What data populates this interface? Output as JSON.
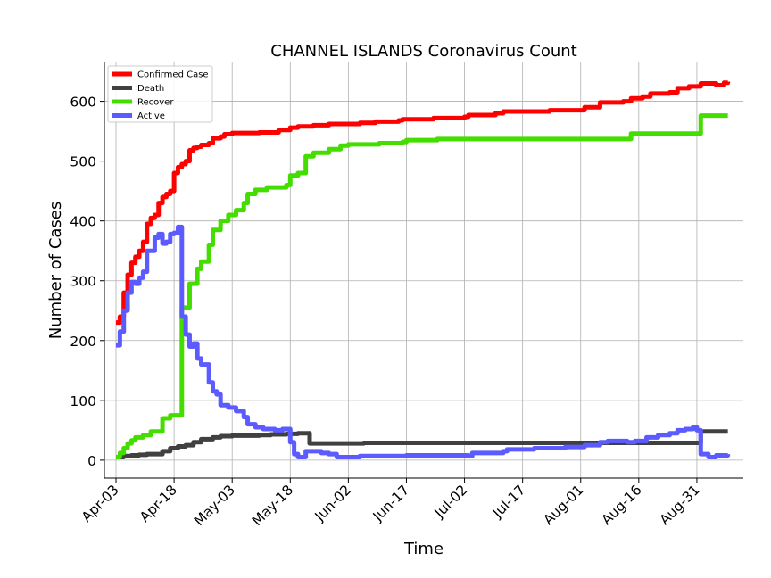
{
  "chart_data": {
    "type": "line",
    "title": "CHANNEL ISLANDS Coronavirus Count",
    "xlabel": "Time",
    "ylabel": "Number of Cases",
    "x_tick_labels": [
      "Apr-03",
      "Apr-18",
      "May-03",
      "May-18",
      "Jun-02",
      "Jun-17",
      "Jul-02",
      "Jul-17",
      "Aug-01",
      "Aug-16",
      "Aug-31"
    ],
    "y_ticks": [
      0,
      100,
      200,
      300,
      400,
      500,
      600
    ],
    "xlim": [
      "2020-03-31",
      "2020-09-12"
    ],
    "ylim": [
      -30,
      665
    ],
    "grid": true,
    "legend_position": "top-left",
    "series": [
      {
        "name": "Confirmed Case",
        "color": "#ff0000",
        "points": [
          [
            "2020-04-03",
            230
          ],
          [
            "2020-04-04",
            240
          ],
          [
            "2020-04-05",
            280
          ],
          [
            "2020-04-06",
            310
          ],
          [
            "2020-04-07",
            330
          ],
          [
            "2020-04-08",
            340
          ],
          [
            "2020-04-09",
            350
          ],
          [
            "2020-04-10",
            365
          ],
          [
            "2020-04-11",
            395
          ],
          [
            "2020-04-12",
            405
          ],
          [
            "2020-04-13",
            410
          ],
          [
            "2020-04-14",
            430
          ],
          [
            "2020-04-15",
            440
          ],
          [
            "2020-04-16",
            445
          ],
          [
            "2020-04-17",
            450
          ],
          [
            "2020-04-18",
            480
          ],
          [
            "2020-04-19",
            490
          ],
          [
            "2020-04-20",
            495
          ],
          [
            "2020-04-21",
            500
          ],
          [
            "2020-04-22",
            518
          ],
          [
            "2020-04-23",
            522
          ],
          [
            "2020-04-24",
            524
          ],
          [
            "2020-04-25",
            527
          ],
          [
            "2020-04-27",
            530
          ],
          [
            "2020-04-28",
            538
          ],
          [
            "2020-04-30",
            541
          ],
          [
            "2020-05-01",
            545
          ],
          [
            "2020-05-03",
            547
          ],
          [
            "2020-05-10",
            548
          ],
          [
            "2020-05-15",
            552
          ],
          [
            "2020-05-18",
            556
          ],
          [
            "2020-05-20",
            558
          ],
          [
            "2020-05-24",
            560
          ],
          [
            "2020-05-28",
            562
          ],
          [
            "2020-06-05",
            564
          ],
          [
            "2020-06-09",
            566
          ],
          [
            "2020-06-15",
            568
          ],
          [
            "2020-06-16",
            570
          ],
          [
            "2020-06-24",
            572
          ],
          [
            "2020-07-02",
            574
          ],
          [
            "2020-07-03",
            577
          ],
          [
            "2020-07-10",
            580
          ],
          [
            "2020-07-12",
            583
          ],
          [
            "2020-07-24",
            585
          ],
          [
            "2020-08-02",
            590
          ],
          [
            "2020-08-06",
            598
          ],
          [
            "2020-08-12",
            600
          ],
          [
            "2020-08-14",
            605
          ],
          [
            "2020-08-17",
            608
          ],
          [
            "2020-08-19",
            613
          ],
          [
            "2020-08-24",
            615
          ],
          [
            "2020-08-26",
            622
          ],
          [
            "2020-08-29",
            625
          ],
          [
            "2020-09-01",
            630
          ],
          [
            "2020-09-05",
            627
          ],
          [
            "2020-09-07",
            631
          ],
          [
            "2020-09-08",
            633
          ]
        ]
      },
      {
        "name": "Death",
        "color": "#404040",
        "points": [
          [
            "2020-04-03",
            5
          ],
          [
            "2020-04-05",
            7
          ],
          [
            "2020-04-07",
            8
          ],
          [
            "2020-04-09",
            9
          ],
          [
            "2020-04-11",
            10
          ],
          [
            "2020-04-15",
            15
          ],
          [
            "2020-04-17",
            20
          ],
          [
            "2020-04-19",
            23
          ],
          [
            "2020-04-21",
            25
          ],
          [
            "2020-04-23",
            30
          ],
          [
            "2020-04-25",
            35
          ],
          [
            "2020-04-28",
            38
          ],
          [
            "2020-04-30",
            40
          ],
          [
            "2020-05-03",
            41
          ],
          [
            "2020-05-10",
            42
          ],
          [
            "2020-05-13",
            43
          ],
          [
            "2020-05-17",
            44
          ],
          [
            "2020-05-20",
            45
          ],
          [
            "2020-05-22",
            45
          ],
          [
            "2020-05-23",
            28
          ],
          [
            "2020-06-06",
            29
          ],
          [
            "2020-08-31",
            29
          ],
          [
            "2020-09-01",
            48
          ],
          [
            "2020-09-08",
            48
          ]
        ]
      },
      {
        "name": "Recover",
        "color": "#44dd00",
        "points": [
          [
            "2020-04-03",
            5
          ],
          [
            "2020-04-04",
            12
          ],
          [
            "2020-04-05",
            20
          ],
          [
            "2020-04-06",
            28
          ],
          [
            "2020-04-07",
            33
          ],
          [
            "2020-04-08",
            38
          ],
          [
            "2020-04-10",
            42
          ],
          [
            "2020-04-12",
            48
          ],
          [
            "2020-04-15",
            70
          ],
          [
            "2020-04-17",
            75
          ],
          [
            "2020-04-20",
            75
          ],
          [
            "2020-04-20",
            255
          ],
          [
            "2020-04-22",
            295
          ],
          [
            "2020-04-24",
            320
          ],
          [
            "2020-04-25",
            332
          ],
          [
            "2020-04-27",
            360
          ],
          [
            "2020-04-28",
            385
          ],
          [
            "2020-04-30",
            400
          ],
          [
            "2020-05-02",
            410
          ],
          [
            "2020-05-04",
            418
          ],
          [
            "2020-05-06",
            430
          ],
          [
            "2020-05-07",
            445
          ],
          [
            "2020-05-09",
            452
          ],
          [
            "2020-05-12",
            456
          ],
          [
            "2020-05-17",
            460
          ],
          [
            "2020-05-18",
            476
          ],
          [
            "2020-05-20",
            480
          ],
          [
            "2020-05-22",
            508
          ],
          [
            "2020-05-24",
            514
          ],
          [
            "2020-05-28",
            520
          ],
          [
            "2020-05-31",
            526
          ],
          [
            "2020-06-02",
            528
          ],
          [
            "2020-06-10",
            530
          ],
          [
            "2020-06-16",
            532
          ],
          [
            "2020-06-17",
            535
          ],
          [
            "2020-06-25",
            537
          ],
          [
            "2020-08-13",
            537
          ],
          [
            "2020-08-14",
            546
          ],
          [
            "2020-08-31",
            546
          ],
          [
            "2020-09-01",
            576
          ],
          [
            "2020-09-08",
            576
          ]
        ]
      },
      {
        "name": "Active",
        "color": "#5b5bff",
        "points": [
          [
            "2020-04-03",
            192
          ],
          [
            "2020-04-04",
            215
          ],
          [
            "2020-04-05",
            250
          ],
          [
            "2020-04-06",
            280
          ],
          [
            "2020-04-07",
            298
          ],
          [
            "2020-04-08",
            295
          ],
          [
            "2020-04-09",
            305
          ],
          [
            "2020-04-10",
            315
          ],
          [
            "2020-04-11",
            350
          ],
          [
            "2020-04-12",
            350
          ],
          [
            "2020-04-13",
            372
          ],
          [
            "2020-04-14",
            378
          ],
          [
            "2020-04-15",
            362
          ],
          [
            "2020-04-16",
            365
          ],
          [
            "2020-04-17",
            378
          ],
          [
            "2020-04-18",
            380
          ],
          [
            "2020-04-19",
            390
          ],
          [
            "2020-04-20",
            388
          ],
          [
            "2020-04-20",
            240
          ],
          [
            "2020-04-21",
            210
          ],
          [
            "2020-04-22",
            190
          ],
          [
            "2020-04-23",
            195
          ],
          [
            "2020-04-24",
            170
          ],
          [
            "2020-04-25",
            160
          ],
          [
            "2020-04-26",
            160
          ],
          [
            "2020-04-27",
            130
          ],
          [
            "2020-04-28",
            115
          ],
          [
            "2020-04-29",
            110
          ],
          [
            "2020-04-30",
            92
          ],
          [
            "2020-05-02",
            88
          ],
          [
            "2020-05-04",
            82
          ],
          [
            "2020-05-06",
            72
          ],
          [
            "2020-05-07",
            60
          ],
          [
            "2020-05-09",
            55
          ],
          [
            "2020-05-11",
            52
          ],
          [
            "2020-05-14",
            50
          ],
          [
            "2020-05-16",
            52
          ],
          [
            "2020-05-18",
            30
          ],
          [
            "2020-05-19",
            10
          ],
          [
            "2020-05-20",
            5
          ],
          [
            "2020-05-21",
            5
          ],
          [
            "2020-05-22",
            15
          ],
          [
            "2020-05-26",
            12
          ],
          [
            "2020-05-28",
            10
          ],
          [
            "2020-05-30",
            5
          ],
          [
            "2020-06-05",
            7
          ],
          [
            "2020-06-17",
            8
          ],
          [
            "2020-07-03",
            7
          ],
          [
            "2020-07-04",
            12
          ],
          [
            "2020-07-12",
            15
          ],
          [
            "2020-07-13",
            18
          ],
          [
            "2020-07-20",
            20
          ],
          [
            "2020-07-28",
            22
          ],
          [
            "2020-08-02",
            25
          ],
          [
            "2020-08-06",
            30
          ],
          [
            "2020-08-08",
            32
          ],
          [
            "2020-08-13",
            30
          ],
          [
            "2020-08-15",
            32
          ],
          [
            "2020-08-18",
            38
          ],
          [
            "2020-08-21",
            42
          ],
          [
            "2020-08-24",
            45
          ],
          [
            "2020-08-26",
            50
          ],
          [
            "2020-08-28",
            52
          ],
          [
            "2020-08-30",
            55
          ],
          [
            "2020-08-31",
            50
          ],
          [
            "2020-09-01",
            10
          ],
          [
            "2020-09-03",
            5
          ],
          [
            "2020-09-05",
            8
          ],
          [
            "2020-09-08",
            10
          ]
        ]
      }
    ]
  }
}
